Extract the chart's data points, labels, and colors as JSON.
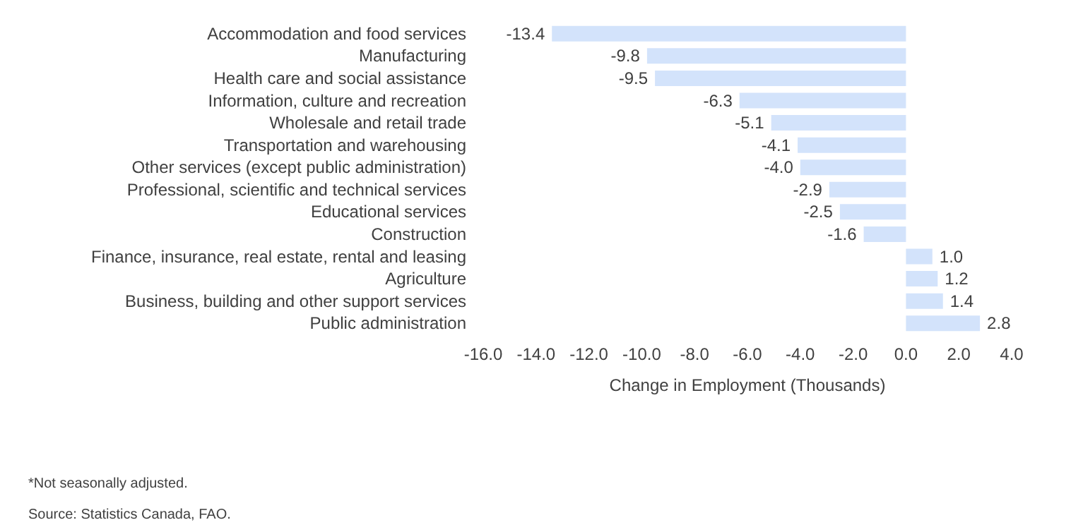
{
  "chart_data": {
    "type": "bar",
    "orientation": "horizontal",
    "categories": [
      "Accommodation and food services",
      "Manufacturing",
      "Health care and social assistance",
      "Information, culture and recreation",
      "Wholesale and retail trade",
      "Transportation and warehousing",
      "Other services (except public administration)",
      "Professional, scientific and technical services",
      "Educational services",
      "Construction",
      "Finance, insurance, real estate, rental and leasing",
      "Agriculture",
      "Business, building and other support services",
      "Public administration"
    ],
    "values": [
      -13.4,
      -9.8,
      -9.5,
      -6.3,
      -5.1,
      -4.1,
      -4.0,
      -2.9,
      -2.5,
      -1.6,
      1.0,
      1.2,
      1.4,
      2.8
    ],
    "value_labels": [
      "-13.4",
      "-9.8",
      "-9.5",
      "-6.3",
      "-5.1",
      "-4.1",
      "-4.0",
      "-2.9",
      "-2.5",
      "-1.6",
      "1.0",
      "1.2",
      "1.4",
      "2.8"
    ],
    "color": "#d3e3fb",
    "xlabel": "Change in Employment (Thousands)",
    "xlim": [
      -16,
      4
    ],
    "xticks": [
      {
        "value": -16,
        "label": "-16.0"
      },
      {
        "value": -14,
        "label": "-14.0"
      },
      {
        "value": -12,
        "label": "-12.0"
      },
      {
        "value": -10,
        "label": "-10.0"
      },
      {
        "value": -8,
        "label": "-8.0"
      },
      {
        "value": -6,
        "label": "-6.0"
      },
      {
        "value": -4,
        "label": "-4.0"
      },
      {
        "value": -2,
        "label": "-2.0"
      },
      {
        "value": 0,
        "label": "0.0"
      },
      {
        "value": 2,
        "label": "2.0"
      },
      {
        "value": 4,
        "label": "4.0"
      }
    ],
    "grid": false,
    "annotations": [
      "*Not seasonally adjusted.",
      "Source: Statistics Canada, FAO."
    ]
  }
}
